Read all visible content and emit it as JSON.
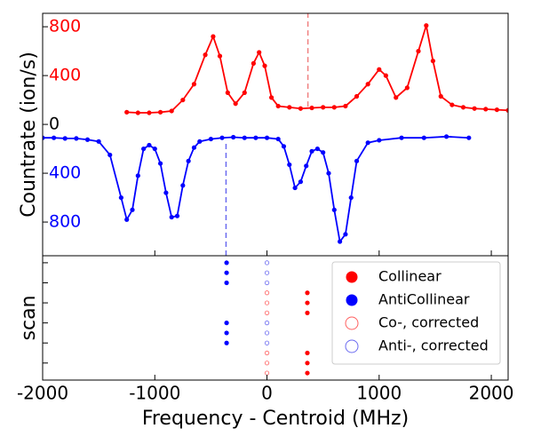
{
  "chart_data": [
    {
      "type": "line",
      "ylabel": "Countrate (ion/s)",
      "xlim": [
        -2000,
        2150
      ],
      "xticks": [
        -2000,
        -1000,
        0,
        1000,
        2000
      ],
      "xtick_labels": false,
      "ylim": [
        -1076,
        910
      ],
      "yticks": [
        800,
        400,
        0,
        {
          "value": -400,
          "label": "400"
        },
        {
          "value": -800,
          "label": "800"
        }
      ],
      "ytick_colors": [
        "#ff0000",
        "#ff0000",
        "#000000",
        "#0000ff",
        "#0000ff"
      ],
      "series": [
        {
          "name": "Collinear",
          "color": "#ff0000",
          "x": [
            -1250,
            -1150,
            -1050,
            -950,
            -850,
            -750,
            -650,
            -550,
            -480,
            -420,
            -350,
            -280,
            -200,
            -120,
            -70,
            -20,
            40,
            100,
            200,
            300,
            400,
            500,
            600,
            700,
            800,
            900,
            1000,
            1060,
            1150,
            1250,
            1350,
            1420,
            1480,
            1550,
            1650,
            1750,
            1850,
            1950,
            2050,
            2150
          ],
          "values": [
            100,
            95,
            95,
            100,
            110,
            200,
            330,
            570,
            720,
            560,
            260,
            170,
            260,
            500,
            590,
            480,
            220,
            150,
            140,
            130,
            135,
            140,
            140,
            150,
            230,
            330,
            450,
            400,
            220,
            300,
            600,
            810,
            520,
            230,
            160,
            140,
            130,
            125,
            120,
            115
          ]
        },
        {
          "name": "AntiCollinear",
          "color": "#0000ff",
          "x": [
            -2000,
            -1900,
            -1800,
            -1700,
            -1600,
            -1500,
            -1400,
            -1300,
            -1250,
            -1200,
            -1150,
            -1100,
            -1050,
            -1000,
            -950,
            -900,
            -850,
            -800,
            -750,
            -700,
            -650,
            -600,
            -500,
            -400,
            -300,
            -200,
            -100,
            0,
            100,
            150,
            200,
            250,
            300,
            350,
            400,
            450,
            500,
            550,
            600,
            650,
            700,
            750,
            800,
            900,
            1000,
            1200,
            1400,
            1600,
            1800
          ],
          "values": [
            -110,
            -110,
            -115,
            -115,
            -125,
            -140,
            -250,
            -600,
            -780,
            -700,
            -420,
            -200,
            -170,
            -200,
            -320,
            -560,
            -760,
            -750,
            -500,
            -300,
            -190,
            -140,
            -120,
            -110,
            -105,
            -110,
            -110,
            -110,
            -120,
            -180,
            -330,
            -520,
            -470,
            -340,
            -220,
            -200,
            -230,
            -400,
            -700,
            -960,
            -900,
            -600,
            -300,
            -150,
            -130,
            -110,
            -110,
            -100,
            -110
          ]
        }
      ],
      "vlines": [
        {
          "x": 365,
          "y0": 145,
          "y1": 910,
          "color": "#f08080"
        },
        {
          "x": -365,
          "y0": -1076,
          "y1": -145,
          "color": "#6a6af0"
        }
      ]
    },
    {
      "type": "scatter",
      "xlabel": "Frequency - Centroid (MHz)",
      "ylabel": "scan",
      "xlim": [
        -2000,
        2150
      ],
      "xticks": [
        -2000,
        -1000,
        0,
        1000,
        2000
      ],
      "ylim": [
        -0.7,
        11.7
      ],
      "yticks": [
        1,
        3,
        5,
        7,
        9,
        11
      ],
      "ytick_labels": false,
      "legend": "upper right",
      "series": [
        {
          "name": "Collinear",
          "color": "#ff0000",
          "filled": true,
          "x": [
            360,
            360,
            360,
            360,
            360,
            360
          ],
          "values": [
            8,
            7,
            6,
            2,
            1,
            0
          ]
        },
        {
          "name": "AntiCollinear",
          "color": "#0000ff",
          "filled": true,
          "x": [
            -360,
            -360,
            -360,
            -360,
            -360,
            -360
          ],
          "values": [
            11,
            10,
            9,
            5,
            4,
            3
          ]
        },
        {
          "name": "Co-, corrected",
          "color": "#ff6060",
          "filled": false,
          "x": [
            0,
            0,
            0,
            0,
            0,
            0
          ],
          "values": [
            8,
            7,
            6,
            2,
            1,
            0
          ]
        },
        {
          "name": "Anti-, corrected",
          "color": "#6a6af0",
          "filled": false,
          "x": [
            0,
            0,
            0,
            0,
            0,
            0
          ],
          "values": [
            11,
            10,
            9,
            5,
            4,
            3
          ]
        }
      ]
    }
  ]
}
